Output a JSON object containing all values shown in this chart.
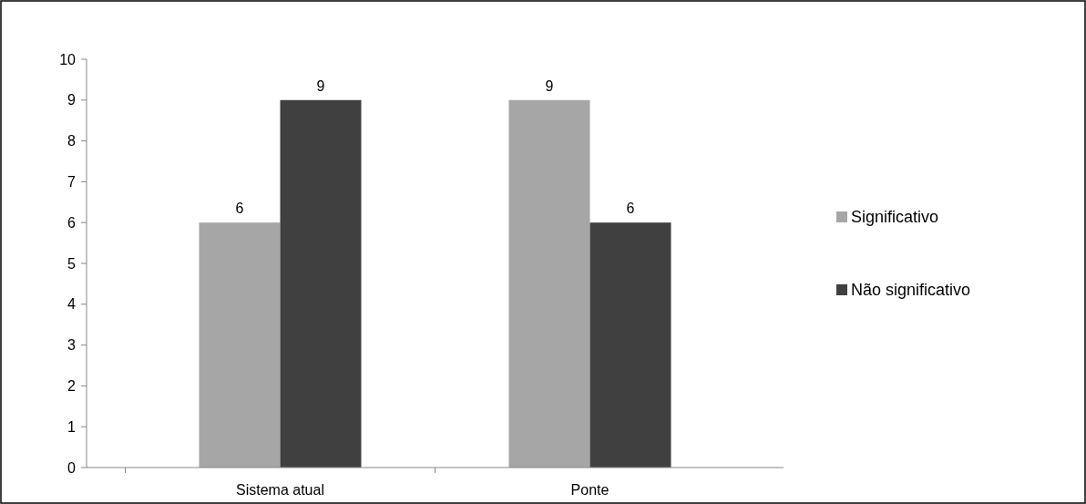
{
  "chart_data": {
    "type": "bar",
    "categories": [
      "Sistema atual",
      "Ponte"
    ],
    "series": [
      {
        "name": "Significativo",
        "color": "#a6a6a6",
        "values": [
          6,
          9
        ]
      },
      {
        "name": "Não significativo",
        "color": "#404040",
        "values": [
          9,
          6
        ]
      }
    ],
    "ylim": [
      0,
      10
    ],
    "yticks": [
      0,
      1,
      2,
      3,
      4,
      5,
      6,
      7,
      8,
      9,
      10
    ],
    "data_labels": true,
    "legend": "right",
    "grid": false
  }
}
